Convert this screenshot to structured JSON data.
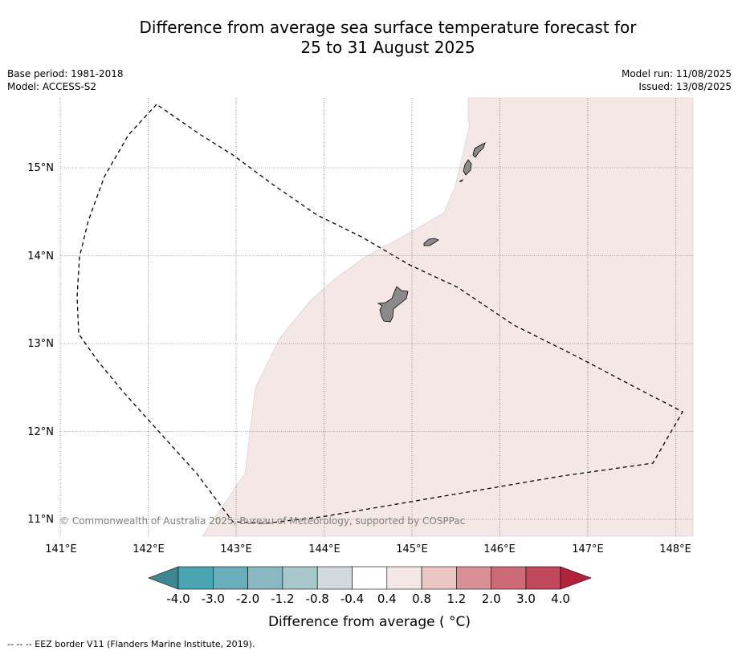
{
  "header": {
    "title_line1": "Difference from average sea surface temperature forecast for",
    "title_line2": "25 to 31 August 2025",
    "base_period": "Base period: 1981-2018",
    "model": "Model: ACCESS-S2",
    "model_run": "Model run: 11/08/2025",
    "issued": "Issued: 13/08/2025"
  },
  "map": {
    "lon_range": [
      141,
      148.2
    ],
    "lat_range": [
      10.8,
      15.8
    ],
    "lon_ticks": [
      "141°E",
      "142°E",
      "143°E",
      "144°E",
      "145°E",
      "146°E",
      "147°E",
      "148°E"
    ],
    "lat_ticks": [
      "15°N",
      "14°N",
      "13°N",
      "12°N",
      "11°N"
    ],
    "copyright": "© Commonwealth of Australia 2025, Bureau of Meteorology, supported by COSPPac",
    "anomaly_region_color": "#f5e7e6",
    "land_color": "#8a8a8a"
  },
  "colorbar": {
    "ticks": [
      "-4.0",
      "-3.0",
      "-2.0",
      "-1.2",
      "-0.8",
      "-0.4",
      "0.4",
      "0.8",
      "1.2",
      "2.0",
      "3.0",
      "4.0"
    ],
    "colors": [
      "#4aa5b3",
      "#6aaebb",
      "#89b8c2",
      "#a7c7cb",
      "#d2d9dc",
      "#ffffff",
      "#f5e7e6",
      "#ecc6c4",
      "#d88f96",
      "#cc6a76",
      "#c0485a"
    ],
    "under_color": "#3c8790",
    "over_color": "#b2213d",
    "label": "Difference from average ( °C)"
  },
  "footnote": "-- -- -- EEZ border V11 (Flanders Marine Institute, 2019)."
}
